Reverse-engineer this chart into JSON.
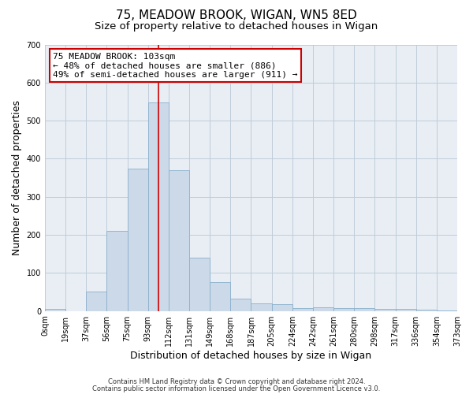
{
  "title": "75, MEADOW BROOK, WIGAN, WN5 8ED",
  "subtitle": "Size of property relative to detached houses in Wigan",
  "xlabel": "Distribution of detached houses by size in Wigan",
  "ylabel": "Number of detached properties",
  "bar_labels": [
    "0sqm",
    "19sqm",
    "37sqm",
    "56sqm",
    "75sqm",
    "93sqm",
    "112sqm",
    "131sqm",
    "149sqm",
    "168sqm",
    "187sqm",
    "205sqm",
    "224sqm",
    "242sqm",
    "261sqm",
    "280sqm",
    "298sqm",
    "317sqm",
    "336sqm",
    "354sqm",
    "373sqm"
  ],
  "bar_heights": [
    5,
    0,
    52,
    210,
    375,
    547,
    370,
    140,
    75,
    33,
    20,
    17,
    8,
    10,
    8,
    7,
    5,
    5,
    3,
    2
  ],
  "bar_color": "#ccd9e8",
  "bar_edge_color": "#8ab0cc",
  "vline_color": "#cc0000",
  "annotation_line1": "75 MEADOW BROOK: 103sqm",
  "annotation_line2": "← 48% of detached houses are smaller (886)",
  "annotation_line3": "49% of semi-detached houses are larger (911) →",
  "annotation_box_facecolor": "#ffffff",
  "annotation_box_edgecolor": "#cc0000",
  "ylim": [
    0,
    700
  ],
  "yticks": [
    0,
    100,
    200,
    300,
    400,
    500,
    600,
    700
  ],
  "grid_color": "#bfccd9",
  "bg_color": "#e8eef4",
  "footer1": "Contains HM Land Registry data © Crown copyright and database right 2024.",
  "footer2": "Contains public sector information licensed under the Open Government Licence v3.0.",
  "title_fontsize": 11,
  "subtitle_fontsize": 9.5,
  "axis_label_fontsize": 9,
  "tick_fontsize": 7,
  "annotation_fontsize": 8,
  "footer_fontsize": 6
}
